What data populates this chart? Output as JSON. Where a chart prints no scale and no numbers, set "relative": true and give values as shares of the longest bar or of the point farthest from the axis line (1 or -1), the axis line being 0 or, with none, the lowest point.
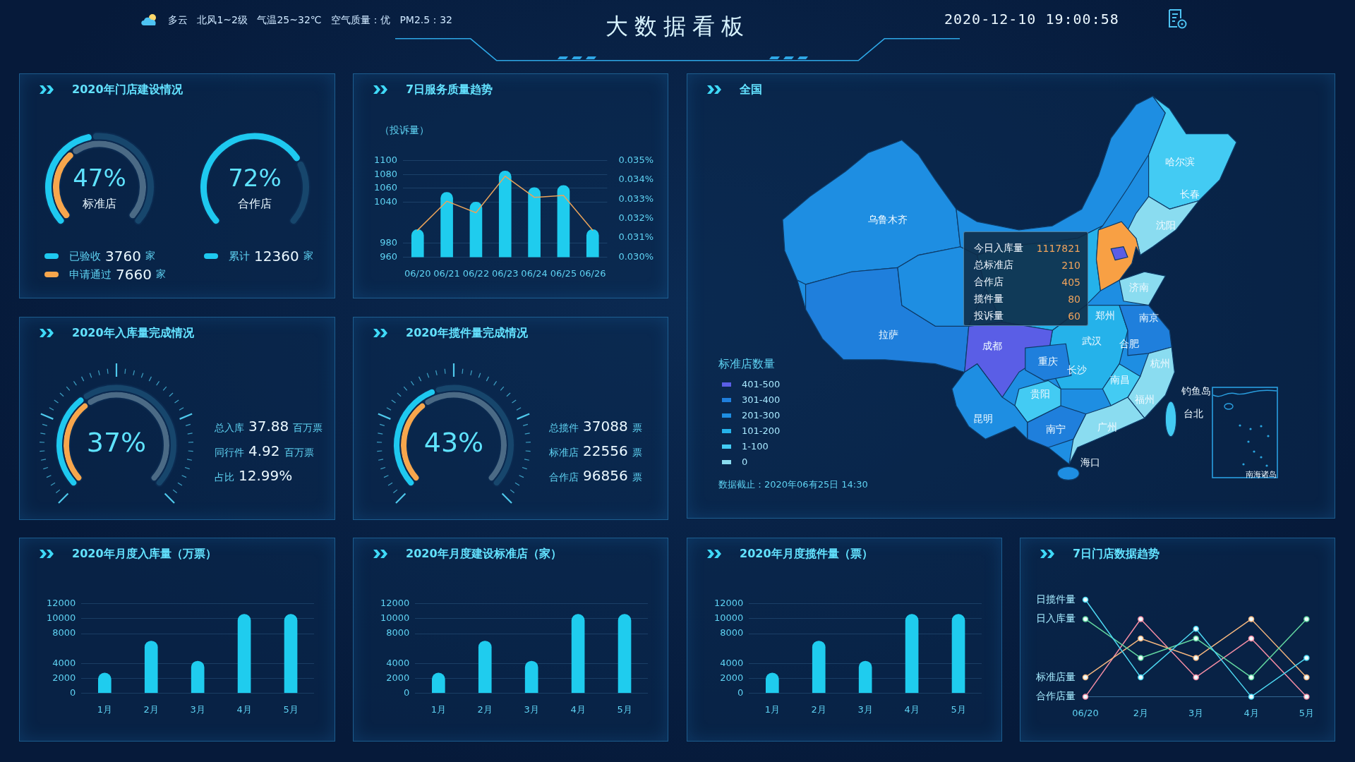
{
  "chart_data": [
    {
      "type": "other",
      "title": "大数据看板",
      "annotations": [
        "多云 北风1~2级 气温25~32℃ 空气质量：优 PM2.5：32",
        "2020-12-10 19:00:58"
      ]
    },
    {
      "type": "donut",
      "title": "2020年门店建设情况",
      "categories": [
        "标准店",
        null
      ],
      "series": [
        {
          "name": "已验收",
          "colors": [
            "#1ec9f0",
            "#17466c"
          ],
          "values": [
            47,
            53
          ],
          "value_labels": [
            "47%",
            null
          ]
        },
        {
          "name": "申请通过",
          "colors": [
            "#f7a64c",
            "#4b6a85"
          ],
          "values": [
            36,
            64
          ]
        }
      ],
      "legend": "bottom",
      "annotations": [
        "3760 家",
        "7660 家"
      ]
    },
    {
      "type": "donut",
      "categories": [
        "合作店",
        null
      ],
      "series": [
        {
          "name": "累计",
          "colors": [
            "#1ec9f0",
            "#17466c"
          ],
          "values": [
            72,
            28
          ],
          "value_labels": [
            "72%",
            null
          ]
        }
      ],
      "legend": "bottom",
      "annotations": [
        "12360 家"
      ]
    },
    {
      "type": "bar",
      "title": "7日服务质量趋势",
      "ylabel": "（投诉量）",
      "categories": [
        "06/20",
        "06/21",
        "06/22",
        "06/23",
        "06/24",
        "06/25",
        "06/26"
      ],
      "series": [
        {
          "type": "bar",
          "color": "#1fccee",
          "values": [
            1000,
            1054,
            1040,
            1085,
            1061,
            1064,
            1000
          ]
        },
        {
          "type": "line",
          "axis": "y2",
          "color": "#eaa35a",
          "values": [
            0.0314,
            0.0329,
            0.0323,
            0.0342,
            0.0331,
            0.0332,
            0.0314
          ]
        }
      ],
      "ylim": [
        960,
        1100
      ],
      "yticks": [
        960,
        980,
        1040,
        1060,
        1080,
        1100
      ],
      "y2lim": [
        0.03,
        0.035
      ],
      "y2ticks": [
        {
          "value": 0.03,
          "label": "0.030%"
        },
        {
          "value": 0.031,
          "label": "0.031%"
        },
        {
          "value": 0.032,
          "label": "0.032%"
        },
        {
          "value": 0.033,
          "label": "0.033%"
        },
        {
          "value": 0.034,
          "label": "0.034%"
        },
        {
          "value": 0.035,
          "label": "0.035%"
        }
      ],
      "grid": "y"
    },
    {
      "type": "other",
      "title": "全国",
      "legend_title": "标准店数量",
      "categories": [
        "401-500",
        "301-400",
        "201-300",
        "101-200",
        "1-100",
        "0"
      ],
      "colors": [
        "#5a5ee6",
        "#1f7fdc",
        "#1e8ee2",
        "#25b2ea",
        "#43cbf3",
        "#8adcf0"
      ],
      "annotations": [
        "数据截止：2020年06有25日 14:30",
        "今日入库量 1117821",
        "总标准店 210",
        "合作店 405",
        "揽件量 80",
        "投诉量 60",
        "乌鲁木齐",
        "哈尔滨",
        "长春",
        "沈阳",
        "济南",
        "郑州",
        "南京",
        "拉萨",
        "成都",
        "武汉",
        "合肥",
        "重庆",
        "长沙",
        "杭州",
        "南昌",
        "贵阳",
        "福州",
        "昆明",
        "南宁",
        "广州",
        "台北",
        "海口",
        "钓鱼岛",
        "南海诸岛"
      ]
    },
    {
      "type": "donut",
      "title": "2020年入库量完成情况",
      "series": [
        {
          "colors": [
            "#1ec9f0",
            "#17466c"
          ],
          "values": [
            37,
            63
          ],
          "value_labels": [
            "37%",
            null
          ]
        },
        {
          "colors": [
            "#f7a64c",
            "#4b6a85"
          ],
          "values": [
            37,
            63
          ]
        }
      ],
      "annotations": [
        "总入库 37.88 百万票",
        "同行件 4.92 百万票",
        "占比 12.99%"
      ]
    },
    {
      "type": "donut",
      "title": "2020年揽件量完成情况",
      "series": [
        {
          "colors": [
            "#1ec9f0",
            "#17466c"
          ],
          "values": [
            43,
            57
          ],
          "value_labels": [
            "43%",
            null
          ]
        },
        {
          "colors": [
            "#f7a64c",
            "#4b6a85"
          ],
          "values": [
            37,
            63
          ]
        }
      ],
      "annotations": [
        "总揽件 37088 票",
        "标准店 22556 票",
        "合作店 96856 票"
      ]
    },
    {
      "type": "bar",
      "title": "2020年月度入库量（万票）",
      "categories": [
        "1月",
        "2月",
        "3月",
        "4月",
        "5月"
      ],
      "values": [
        2700,
        7000,
        4300,
        10600,
        10600
      ],
      "color": "#1fccee",
      "ylim": [
        0,
        12000
      ],
      "yticks": [
        0,
        2000,
        4000,
        8000,
        10000,
        12000
      ],
      "grid": "y"
    },
    {
      "type": "bar",
      "title": "2020年月度建设标准店（家）",
      "categories": [
        "1月",
        "2月",
        "3月",
        "4月",
        "5月"
      ],
      "values": [
        2700,
        7000,
        4300,
        10600,
        10600
      ],
      "color": "#1fccee",
      "ylim": [
        0,
        12000
      ],
      "yticks": [
        0,
        2000,
        4000,
        8000,
        10000,
        12000
      ],
      "grid": "y"
    },
    {
      "type": "bar",
      "title": "2020年月度揽件量（票）",
      "categories": [
        "1月",
        "2月",
        "3月",
        "4月",
        "5月"
      ],
      "values": [
        2700,
        7000,
        4300,
        10600,
        10600
      ],
      "color": "#1fccee",
      "ylim": [
        0,
        12000
      ],
      "yticks": [
        0,
        2000,
        4000,
        8000,
        10000,
        12000
      ],
      "grid": "y"
    },
    {
      "type": "line",
      "title": "7日门店数据趋势",
      "relative": true,
      "categories": [
        "06/20",
        "2月",
        "3月",
        "4月",
        "5月"
      ],
      "series": [
        {
          "name": "日揽件量",
          "color": "#4dd8f2",
          "values": [
            1,
            0.2,
            0.7,
            0,
            0.4
          ]
        },
        {
          "name": "日入库量",
          "color": "#62d6a0",
          "values": [
            0.8,
            0.4,
            0.6,
            0.2,
            0.8
          ]
        },
        {
          "name": "标准店量",
          "color": "#f2b57e",
          "values": [
            0.2,
            0.6,
            0.4,
            0.8,
            0.2
          ]
        },
        {
          "name": "合作店量",
          "color": "#f38da4",
          "values": [
            0,
            0.8,
            0.2,
            0.6,
            0
          ]
        }
      ],
      "marker": "circle"
    }
  ]
}
